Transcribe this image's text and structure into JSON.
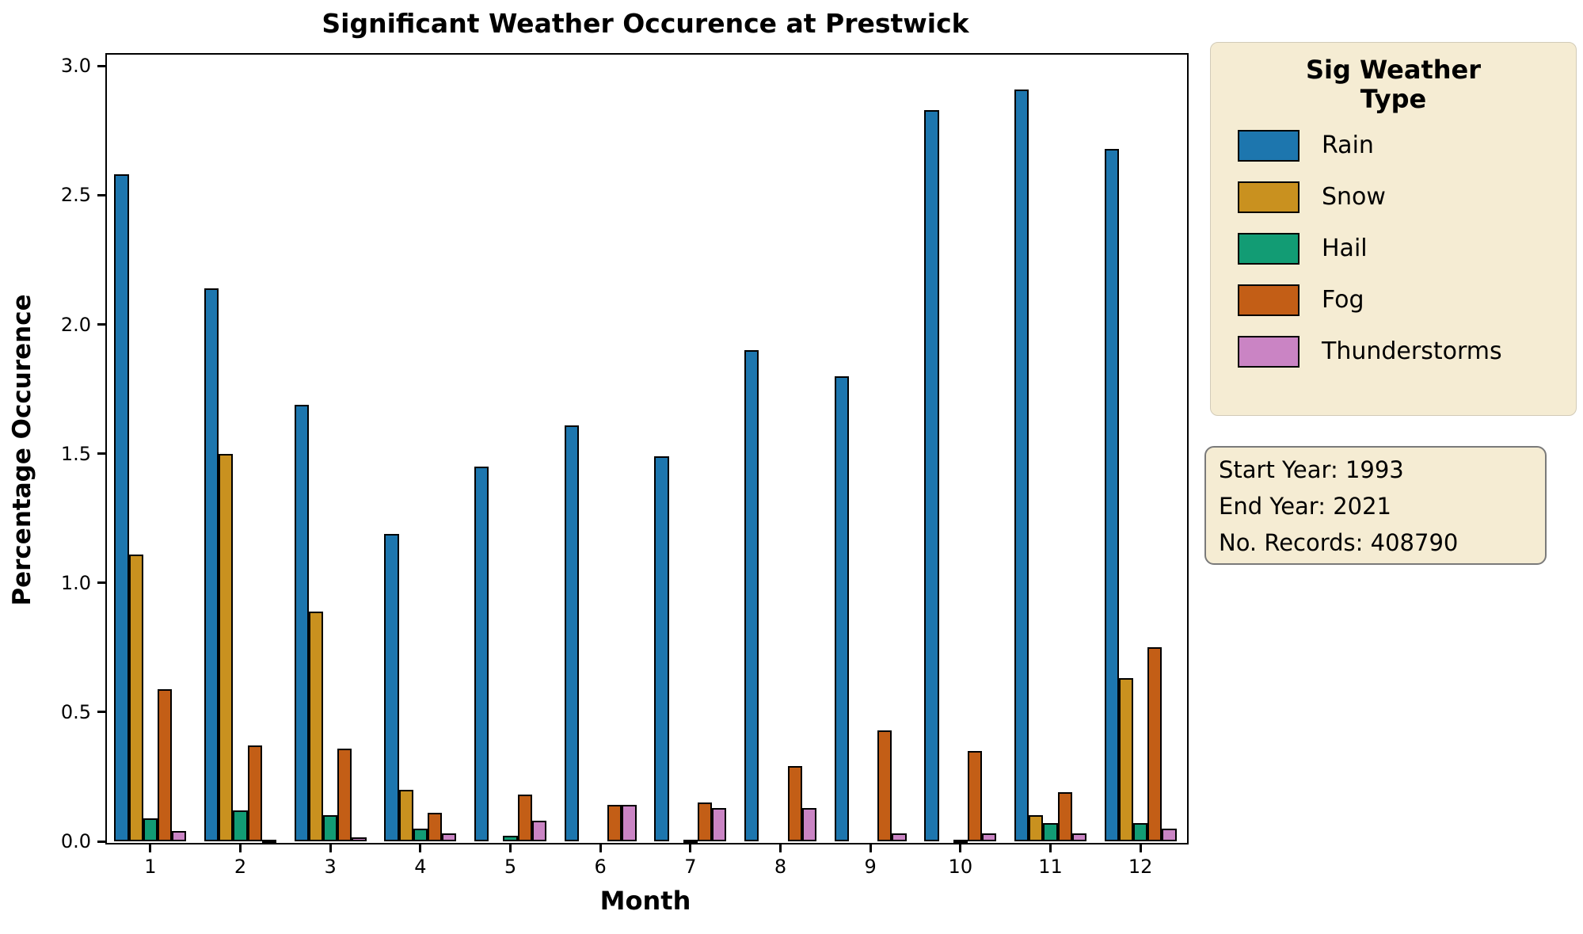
{
  "figure": {
    "title": "Significant Weather Occurence at Prestwick"
  },
  "axes": {
    "xlabel": "Month",
    "ylabel": "Percentage Occurence",
    "ytick_labels": [
      "0.0",
      "0.5",
      "1.0",
      "1.5",
      "2.0",
      "2.5",
      "3.0"
    ],
    "ytick_values": [
      0,
      0.5,
      1.0,
      1.5,
      2.0,
      2.5,
      3.0
    ]
  },
  "legend": {
    "title": "Sig Weather Type",
    "background": "#f5ecd3",
    "entries": [
      {
        "label": "Rain",
        "color": "#1d76ae"
      },
      {
        "label": "Snow",
        "color": "#c9911f"
      },
      {
        "label": "Hail",
        "color": "#129c74"
      },
      {
        "label": "Fog",
        "color": "#c35e16"
      },
      {
        "label": "Thunderstorms",
        "color": "#ca84c4"
      }
    ]
  },
  "info_box": {
    "background": "#f5ecd3",
    "lines": [
      "Start Year: 1993",
      "End Year: 2021",
      "No. Records: 408790"
    ]
  },
  "chart_data": {
    "type": "bar",
    "title": "Significant Weather Occurence at Prestwick",
    "xlabel": "Month",
    "ylabel": "Percentage Occurence",
    "categories": [
      "1",
      "2",
      "3",
      "4",
      "5",
      "6",
      "7",
      "8",
      "9",
      "10",
      "11",
      "12"
    ],
    "series": [
      {
        "name": "Rain",
        "color": "#1d76ae",
        "values": [
          2.58,
          2.14,
          1.69,
          1.19,
          1.45,
          1.61,
          1.49,
          1.9,
          1.8,
          2.83,
          2.91,
          2.68
        ]
      },
      {
        "name": "Snow",
        "color": "#c9911f",
        "values": [
          1.11,
          1.5,
          0.89,
          0.2,
          0,
          0,
          0,
          0,
          0,
          0,
          0.1,
          0.63
        ]
      },
      {
        "name": "Hail",
        "color": "#129c74",
        "values": [
          0.09,
          0.12,
          0.1,
          0.05,
          0.02,
          0,
          0.005,
          0,
          0,
          0.005,
          0.07,
          0.07
        ]
      },
      {
        "name": "Fog",
        "color": "#c35e16",
        "values": [
          0.59,
          0.37,
          0.36,
          0.11,
          0.18,
          0.14,
          0.15,
          0.29,
          0.43,
          0.35,
          0.19,
          0.75
        ]
      },
      {
        "name": "Thunderstorms",
        "color": "#ca84c4",
        "values": [
          0.04,
          0.005,
          0.015,
          0.03,
          0.08,
          0.14,
          0.13,
          0.13,
          0.03,
          0.03,
          0.03,
          0.05
        ]
      }
    ],
    "ylim": [
      0,
      3.05
    ],
    "grid": false,
    "bar_edge_color": "#000000",
    "bar_group_width_ratio": 0.8,
    "legend_title": "Sig Weather Type",
    "legend_position": "right",
    "annotations": [
      "Start Year: 1993",
      "End Year: 2021",
      "No. Records: 408790"
    ]
  }
}
